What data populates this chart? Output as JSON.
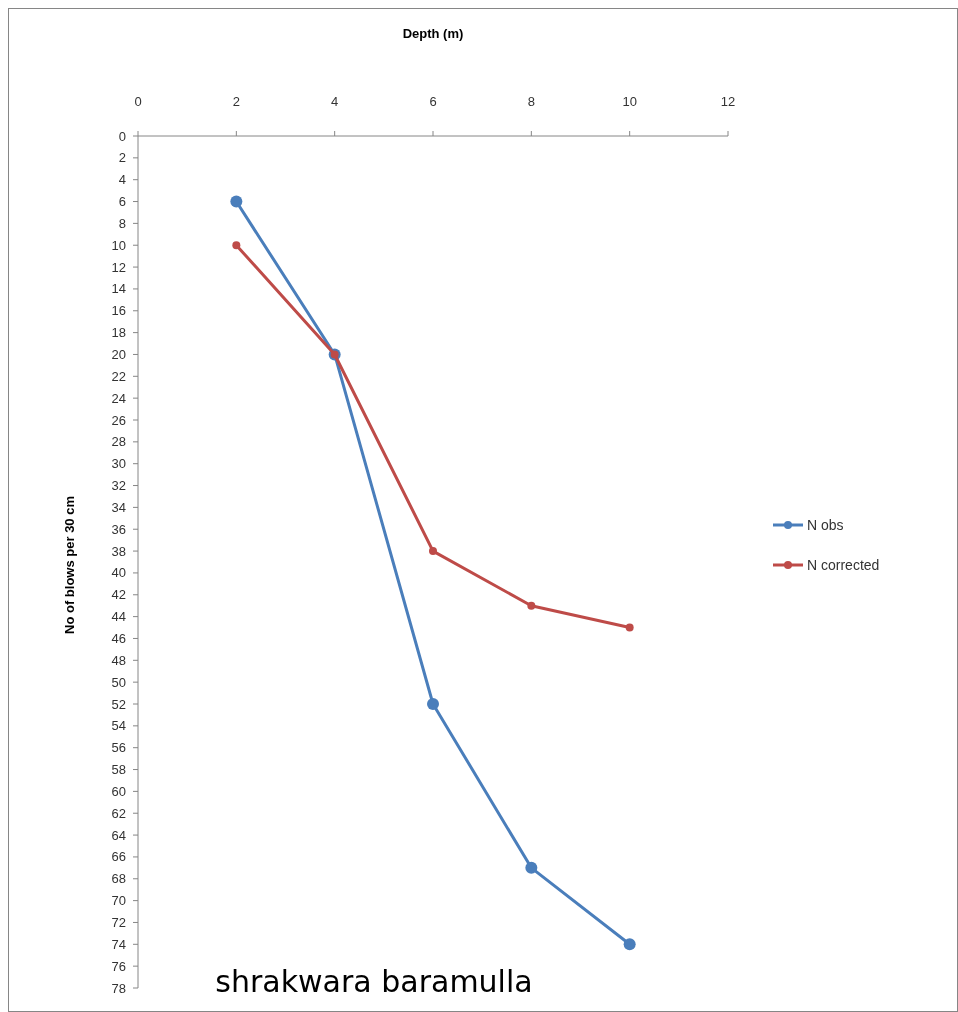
{
  "chart_data": {
    "type": "line",
    "xlabel": "Depth (m)",
    "ylabel": "No of blows per 30 cm",
    "x": [
      2,
      4,
      6,
      8,
      10
    ],
    "series": [
      {
        "name": "N obs",
        "color": "#4a7ebb",
        "values": [
          6,
          20,
          52,
          67,
          74
        ]
      },
      {
        "name": "N corrected",
        "color": "#be4b48",
        "values": [
          10,
          20,
          38,
          43,
          45
        ]
      }
    ],
    "xlim": [
      0,
      12
    ],
    "xticks": [
      0,
      2,
      4,
      6,
      8,
      10,
      12
    ],
    "ylim": [
      78,
      0
    ],
    "yticks": [
      0,
      2,
      4,
      6,
      8,
      10,
      12,
      14,
      16,
      18,
      20,
      22,
      24,
      26,
      28,
      30,
      32,
      34,
      36,
      38,
      40,
      42,
      44,
      46,
      48,
      50,
      52,
      54,
      56,
      58,
      60,
      62,
      64,
      66,
      68,
      70,
      72,
      74,
      76,
      78
    ],
    "marker": "circle",
    "line_style": "solid",
    "grid": false,
    "legend": "right",
    "annotations": [
      "shrakwara baramulla"
    ]
  }
}
